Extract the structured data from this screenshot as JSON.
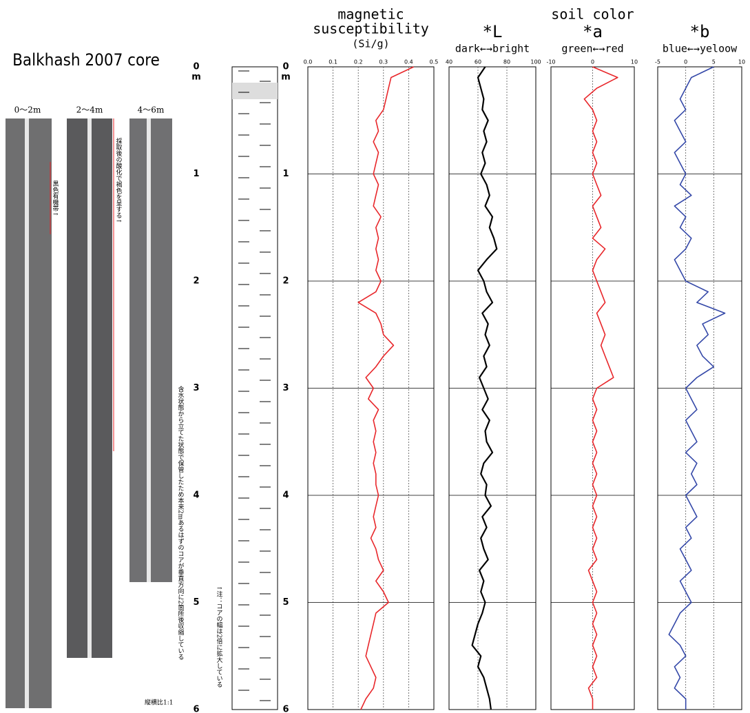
{
  "title": "Balkhash 2007 core",
  "core_photos": [
    "0～2m",
    "2～4m",
    "4～6m"
  ],
  "notes": [
    "黒色有機帯↑",
    "採取後の酸化で褐色を呈する↑",
    "含水状態から立てた状態で保管したため本来2mあるはずのコアが垂直方向に2箇所後収縮している",
    "↑注：コアの幅は2倍に拡大している",
    "縦横比1:1"
  ],
  "depth_axis": {
    "ylim": [
      0,
      6
    ],
    "yticks": [
      0,
      1,
      2,
      3,
      4,
      5,
      6
    ],
    "unit": "m"
  },
  "depth": [
    0,
    0.1,
    0.2,
    0.3,
    0.4,
    0.5,
    0.6,
    0.7,
    0.8,
    0.9,
    1,
    1.1,
    1.2,
    1.3,
    1.4,
    1.5,
    1.6,
    1.7,
    1.8,
    1.9,
    2,
    2.1,
    2.2,
    2.3,
    2.4,
    2.5,
    2.6,
    2.7,
    2.8,
    2.9,
    3,
    3.1,
    3.2,
    3.3,
    3.4,
    3.5,
    3.6,
    3.7,
    3.8,
    3.9,
    4,
    4.1,
    4.2,
    4.3,
    4.4,
    4.5,
    4.6,
    4.7,
    4.8,
    4.9,
    5,
    5.1,
    5.2,
    5.3,
    5.4,
    5.5,
    5.6,
    5.7,
    5.8,
    5.9,
    6
  ],
  "chart_data": [
    {
      "type": "line",
      "title": [
        "magnetic",
        "susceptibility",
        "(Si/g)"
      ],
      "color": "#e8262a",
      "grid": true,
      "xlim": [
        0,
        0.5
      ],
      "xticks": [
        {
          "value": 0,
          "label": "0.0"
        },
        0.1,
        0.2,
        0.3,
        0.4,
        0.5
      ],
      "values": [
        0.42,
        0.33,
        0.32,
        0.31,
        0.3,
        0.27,
        0.28,
        0.26,
        0.28,
        0.27,
        0.26,
        0.28,
        0.27,
        0.26,
        0.29,
        0.27,
        0.28,
        0.27,
        0.28,
        0.27,
        0.29,
        0.27,
        0.2,
        0.27,
        0.29,
        0.3,
        0.34,
        0.3,
        0.27,
        0.23,
        0.26,
        0.24,
        0.28,
        0.26,
        0.27,
        0.26,
        0.27,
        0.26,
        0.27,
        0.27,
        0.28,
        0.27,
        0.26,
        0.27,
        0.25,
        0.27,
        0.28,
        0.3,
        0.27,
        0.3,
        0.32,
        0.27,
        0.26,
        0.25,
        0.24,
        0.23,
        0.25,
        0.27,
        0.26,
        0.23,
        0.21
      ]
    },
    {
      "type": "line",
      "title": [
        "*L"
      ],
      "xlabel": "dark←→bright",
      "color": "#000000",
      "grid": true,
      "xlim": [
        40,
        100
      ],
      "xticks": [
        40,
        60,
        80,
        100
      ],
      "values": [
        65,
        60,
        62,
        64,
        63,
        67,
        64,
        66,
        63,
        65,
        62,
        66,
        68,
        65,
        70,
        68,
        71,
        73,
        66,
        60,
        64,
        66,
        70,
        63,
        67,
        65,
        68,
        64,
        66,
        61,
        64,
        67,
        63,
        68,
        65,
        66,
        70,
        64,
        62,
        66,
        65,
        69,
        63,
        66,
        62,
        64,
        67,
        61,
        64,
        62,
        65,
        63,
        60,
        58,
        56,
        62,
        60,
        64,
        66,
        68,
        69
      ]
    },
    {
      "type": "line",
      "supertitle": "soil color",
      "title": [
        "*a"
      ],
      "xlabel": "green←→red",
      "color": "#e8262a",
      "grid": true,
      "xlim": [
        -10,
        10
      ],
      "xticks": [
        -10,
        0,
        10
      ],
      "values": [
        0,
        6,
        1,
        -2,
        0,
        1,
        0,
        1,
        0,
        1,
        0,
        1,
        2,
        0,
        1,
        2,
        0,
        3,
        1,
        0,
        1,
        2,
        3,
        1,
        2,
        3,
        2,
        3,
        4,
        5,
        1,
        0,
        1,
        0,
        1,
        0,
        1,
        0,
        1,
        0,
        1,
        0,
        1,
        0,
        1,
        0,
        1,
        -1,
        0,
        1,
        0,
        1,
        0,
        1,
        0,
        1,
        0,
        1,
        -1,
        0,
        0
      ]
    },
    {
      "type": "line",
      "title": [
        "*b"
      ],
      "xlabel": "blue←→yeloow",
      "color": "#3448a8",
      "grid": true,
      "xlim": [
        -5,
        10
      ],
      "xticks": [
        -5,
        0,
        5,
        10
      ],
      "values": [
        5,
        1,
        0,
        -1,
        0,
        -2,
        -1,
        0,
        -2,
        -1,
        0,
        -1,
        1,
        -2,
        0,
        -1,
        1,
        0,
        -2,
        -1,
        0,
        4,
        2,
        7,
        3,
        4,
        2,
        3,
        5,
        2,
        0,
        1,
        2,
        0,
        1,
        2,
        0,
        2,
        1,
        2,
        0,
        1,
        2,
        0,
        1,
        -1,
        0,
        1,
        -1,
        0,
        1,
        -1,
        -2,
        -3,
        -1,
        0,
        -2,
        -1,
        -2,
        0,
        0
      ]
    }
  ]
}
